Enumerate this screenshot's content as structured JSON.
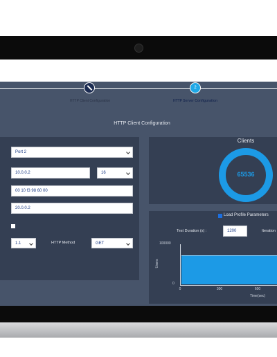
{
  "stepper": {
    "steps": [
      {
        "label": "HTTP Client Configuration"
      },
      {
        "number": "2",
        "label": "HTTP Server Configuration"
      }
    ]
  },
  "header": {
    "title": "HTTP Client Configuration"
  },
  "client_form": {
    "port": "Port 2",
    "ip": "10.0.0.2",
    "prefix": "16",
    "mac": "00 10 f3 98 60 00",
    "gateway": "20.0.0.2",
    "http_version": "1.1",
    "method_label": "HTTP Method",
    "method": "GET"
  },
  "clients_panel": {
    "title": "Clients",
    "count": "65536"
  },
  "load_panel": {
    "checkbox_label": "Load Profile Parameters",
    "duration_label": "Test Duration (s) :",
    "duration": "1200",
    "iteration_label": "Iteration",
    "y_axis_label": "Users",
    "y_max": "100000",
    "y_min": "0",
    "x_ticks": [
      "0",
      "300",
      "600"
    ],
    "x_axis_label": "Time(sec)"
  }
}
